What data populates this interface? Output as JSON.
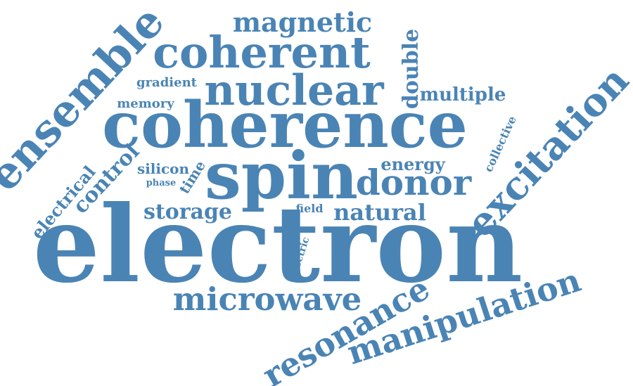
{
  "word_color": "#4a84b5",
  "words": [
    {
      "id": "electron",
      "text": "electron"
    },
    {
      "id": "coherence",
      "text": "coherence"
    },
    {
      "id": "spin",
      "text": "spin"
    },
    {
      "id": "coherent",
      "text": "coherent"
    },
    {
      "id": "nuclear",
      "text": "nuclear"
    },
    {
      "id": "ensemble",
      "text": "ensemble"
    },
    {
      "id": "excitation",
      "text": "excitation"
    },
    {
      "id": "manipulation",
      "text": "manipulation"
    },
    {
      "id": "resonance",
      "text": "resonance"
    },
    {
      "id": "microwave",
      "text": "microwave"
    },
    {
      "id": "donor",
      "text": "donor"
    },
    {
      "id": "magnetic",
      "text": "magnetic"
    },
    {
      "id": "double",
      "text": "double"
    },
    {
      "id": "multiple",
      "text": "multiple"
    },
    {
      "id": "gradient",
      "text": "gradient"
    },
    {
      "id": "memory",
      "text": "memory"
    },
    {
      "id": "control",
      "text": "control"
    },
    {
      "id": "electrical",
      "text": "electrical"
    },
    {
      "id": "silicon",
      "text": "silicon"
    },
    {
      "id": "phase",
      "text": "phase"
    },
    {
      "id": "time",
      "text": "time"
    },
    {
      "id": "storage",
      "text": "storage"
    },
    {
      "id": "energy",
      "text": "energy"
    },
    {
      "id": "collective",
      "text": "collective"
    },
    {
      "id": "natural",
      "text": "natural"
    },
    {
      "id": "field",
      "text": "field"
    },
    {
      "id": "electric",
      "text": "electric"
    }
  ]
}
